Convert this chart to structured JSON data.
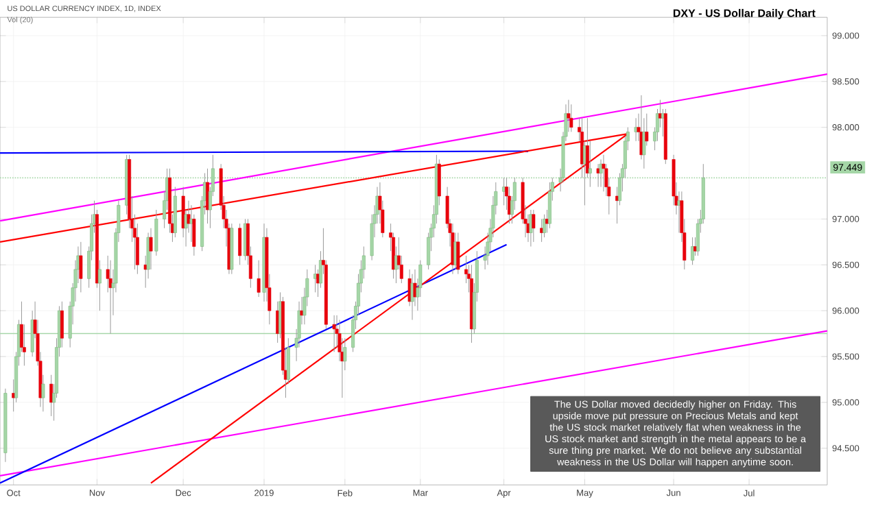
{
  "chart_data": {
    "type": "candlestick",
    "title": "DXY - US Dollar Daily Chart",
    "subtitle": "US DOLLAR CURRENCY INDEX, 1D, INDEX",
    "annotations": [
      "Vol (20)",
      "The US Dollar moved decidedly higher on Friday. This upside move put pressure on Precious Metals and kept the US stock market relatively flat when weakness in the US stock market and strength in the metal appears to be a sure thing pre market. We do not believe any substantial weakness in the US Dollar will happen anytime soon."
    ],
    "xlim": [
      "2018-09-26",
      "2019-07-30"
    ],
    "xticks": [
      {
        "value": "2018-10-01",
        "label": "Oct"
      },
      {
        "value": "2018-11-01",
        "label": "Nov"
      },
      {
        "value": "2018-12-03",
        "label": "Dec"
      },
      {
        "value": "2019-01-02",
        "label": "2019"
      },
      {
        "value": "2019-02-01",
        "label": "Feb"
      },
      {
        "value": "2019-03-01",
        "label": "Mar"
      },
      {
        "value": "2019-04-01",
        "label": "Apr"
      },
      {
        "value": "2019-05-01",
        "label": "May"
      },
      {
        "value": "2019-06-03",
        "label": "Jun"
      },
      {
        "value": "2019-07-01",
        "label": "Jul"
      }
    ],
    "ylim": [
      94.1,
      99.2
    ],
    "yticks": [
      {
        "value": 94.5,
        "label": "94.500"
      },
      {
        "value": 95,
        "label": "95.000"
      },
      {
        "value": 95.5,
        "label": "95.500"
      },
      {
        "value": 96,
        "label": "96.000"
      },
      {
        "value": 96.5,
        "label": "96.500"
      },
      {
        "value": 97,
        "label": "97.000"
      },
      {
        "value": 98,
        "label": "98.000"
      },
      {
        "value": 98.5,
        "label": "98.500"
      },
      {
        "value": 99,
        "label": "99.000"
      }
    ],
    "grid": true,
    "ref_lines": [
      {
        "axis": "y",
        "value": 95.75,
        "color": "#a5d6a7",
        "line_style": "solid"
      },
      {
        "axis": "y",
        "value": 97.449,
        "label": "97.449",
        "color": "#a5d6a7",
        "line_style": "dotted"
      }
    ],
    "series": [
      {
        "type": "line",
        "color": "#ff00ff",
        "x": [
          "2018-09-26",
          "2019-07-30"
        ],
        "values": [
          96.98,
          98.58
        ]
      },
      {
        "type": "line",
        "color": "#ff00ff",
        "x": [
          "2018-09-26",
          "2019-07-30"
        ],
        "values": [
          94.2,
          95.78
        ]
      },
      {
        "type": "line",
        "color": "#0000ff",
        "x": [
          "2018-09-26",
          "2019-04-10"
        ],
        "values": [
          97.72,
          97.74
        ]
      },
      {
        "type": "line",
        "color": "#0000ff",
        "x": [
          "2018-09-26",
          "2019-04-02"
        ],
        "values": [
          94.12,
          96.72
        ]
      },
      {
        "type": "line",
        "color": "#ff0000",
        "x": [
          "2018-09-26",
          "2019-05-17"
        ],
        "values": [
          96.75,
          97.93
        ]
      },
      {
        "type": "line",
        "color": "#ff0000",
        "x": [
          "2018-11-21",
          "2019-05-17"
        ],
        "values": [
          94.12,
          97.93
        ]
      }
    ],
    "x": [
      "2018-09-28",
      "2018-10-01",
      "2018-10-02",
      "2018-10-03",
      "2018-10-04",
      "2018-10-05",
      "2018-10-08",
      "2018-10-09",
      "2018-10-10",
      "2018-10-11",
      "2018-10-12",
      "2018-10-15",
      "2018-10-16",
      "2018-10-17",
      "2018-10-18",
      "2018-10-19",
      "2018-10-22",
      "2018-10-23",
      "2018-10-24",
      "2018-10-25",
      "2018-10-26",
      "2018-10-29",
      "2018-10-30",
      "2018-10-31",
      "2018-11-01",
      "2018-11-02",
      "2018-11-05",
      "2018-11-06",
      "2018-11-07",
      "2018-11-08",
      "2018-11-09",
      "2018-11-12",
      "2018-11-13",
      "2018-11-14",
      "2018-11-15",
      "2018-11-16",
      "2018-11-19",
      "2018-11-20",
      "2018-11-21",
      "2018-11-23",
      "2018-11-26",
      "2018-11-27",
      "2018-11-28",
      "2018-11-29",
      "2018-11-30",
      "2018-12-03",
      "2018-12-04",
      "2018-12-05",
      "2018-12-06",
      "2018-12-07",
      "2018-12-10",
      "2018-12-11",
      "2018-12-12",
      "2018-12-13",
      "2018-12-14",
      "2018-12-17",
      "2018-12-18",
      "2018-12-19",
      "2018-12-20",
      "2018-12-21",
      "2018-12-24",
      "2018-12-26",
      "2018-12-27",
      "2018-12-28",
      "2018-12-31",
      "2019-01-02",
      "2019-01-03",
      "2019-01-04",
      "2019-01-07",
      "2019-01-08",
      "2019-01-09",
      "2019-01-10",
      "2019-01-11",
      "2019-01-14",
      "2019-01-15",
      "2019-01-16",
      "2019-01-17",
      "2019-01-18",
      "2019-01-21",
      "2019-01-22",
      "2019-01-23",
      "2019-01-24",
      "2019-01-25",
      "2019-01-28",
      "2019-01-29",
      "2019-01-30",
      "2019-01-31",
      "2019-02-01",
      "2019-02-04",
      "2019-02-05",
      "2019-02-06",
      "2019-02-07",
      "2019-02-08",
      "2019-02-11",
      "2019-02-12",
      "2019-02-13",
      "2019-02-14",
      "2019-02-15",
      "2019-02-18",
      "2019-02-19",
      "2019-02-20",
      "2019-02-21",
      "2019-02-22",
      "2019-02-25",
      "2019-02-26",
      "2019-02-27",
      "2019-02-28",
      "2019-03-01",
      "2019-03-04",
      "2019-03-05",
      "2019-03-06",
      "2019-03-07",
      "2019-03-08",
      "2019-03-11",
      "2019-03-12",
      "2019-03-13",
      "2019-03-14",
      "2019-03-15",
      "2019-03-18",
      "2019-03-19",
      "2019-03-20",
      "2019-03-21",
      "2019-03-22",
      "2019-03-25",
      "2019-03-26",
      "2019-03-27",
      "2019-03-28",
      "2019-03-29",
      "2019-04-01",
      "2019-04-02",
      "2019-04-03",
      "2019-04-04",
      "2019-04-05",
      "2019-04-08",
      "2019-04-09",
      "2019-04-10",
      "2019-04-11",
      "2019-04-12",
      "2019-04-15",
      "2019-04-16",
      "2019-04-17",
      "2019-04-18",
      "2019-04-19",
      "2019-04-22",
      "2019-04-23",
      "2019-04-24",
      "2019-04-25",
      "2019-04-26",
      "2019-04-29",
      "2019-04-30",
      "2019-05-01",
      "2019-05-02",
      "2019-05-03",
      "2019-05-06",
      "2019-05-07",
      "2019-05-08",
      "2019-05-09",
      "2019-05-10",
      "2019-05-13",
      "2019-05-14",
      "2019-05-15",
      "2019-05-16",
      "2019-05-17",
      "2019-05-20",
      "2019-05-21",
      "2019-05-22",
      "2019-05-23",
      "2019-05-24",
      "2019-05-27",
      "2019-05-28",
      "2019-05-29",
      "2019-05-30",
      "2019-05-31",
      "2019-06-03",
      "2019-06-04",
      "2019-06-05",
      "2019-06-06",
      "2019-06-07",
      "2019-06-10",
      "2019-06-11",
      "2019-06-12",
      "2019-06-13",
      "2019-06-14"
    ],
    "ohlc": [
      [
        94.45,
        95.15,
        94.35,
        95.1
      ],
      [
        95.1,
        95.25,
        94.9,
        95.05
      ],
      [
        95.05,
        95.55,
        95.0,
        95.5
      ],
      [
        95.5,
        95.9,
        95.4,
        95.85
      ],
      [
        95.85,
        96.1,
        95.55,
        95.6
      ],
      [
        95.6,
        95.85,
        95.4,
        95.55
      ],
      [
        95.55,
        96.0,
        95.5,
        95.9
      ],
      [
        95.9,
        96.1,
        95.7,
        95.75
      ],
      [
        95.75,
        95.9,
        95.4,
        95.45
      ],
      [
        95.45,
        95.55,
        94.95,
        95.05
      ],
      [
        95.05,
        95.3,
        94.9,
        95.2
      ],
      [
        95.2,
        95.3,
        94.85,
        95.0
      ],
      [
        95.0,
        95.2,
        94.8,
        95.1
      ],
      [
        95.1,
        95.7,
        95.05,
        95.6
      ],
      [
        95.6,
        96.05,
        95.5,
        96.0
      ],
      [
        96.0,
        96.1,
        95.6,
        95.7
      ],
      [
        95.7,
        96.1,
        95.6,
        96.05
      ],
      [
        96.05,
        96.3,
        95.85,
        96.25
      ],
      [
        96.25,
        96.55,
        96.1,
        96.45
      ],
      [
        96.45,
        96.7,
        96.3,
        96.6
      ],
      [
        96.6,
        96.75,
        96.2,
        96.35
      ],
      [
        96.35,
        96.7,
        96.25,
        96.65
      ],
      [
        96.65,
        97.05,
        96.55,
        96.95
      ],
      [
        96.95,
        97.2,
        96.85,
        97.05
      ],
      [
        97.05,
        97.1,
        96.25,
        96.3
      ],
      [
        96.3,
        96.55,
        96.0,
        96.45
      ],
      [
        96.45,
        96.6,
        96.2,
        96.35
      ],
      [
        96.35,
        96.55,
        95.75,
        96.25
      ],
      [
        96.25,
        96.45,
        95.95,
        96.3
      ],
      [
        96.3,
        96.9,
        96.2,
        96.85
      ],
      [
        96.85,
        97.2,
        96.75,
        97.15
      ],
      [
        97.15,
        97.7,
        97.05,
        97.65
      ],
      [
        97.65,
        97.7,
        96.9,
        97.0
      ],
      [
        97.0,
        97.25,
        96.75,
        96.9
      ],
      [
        96.9,
        97.05,
        96.45,
        96.8
      ],
      [
        96.8,
        96.95,
        96.4,
        96.5
      ],
      [
        96.5,
        96.6,
        96.25,
        96.45
      ],
      [
        96.45,
        96.85,
        96.35,
        96.8
      ],
      [
        96.8,
        96.9,
        96.45,
        96.65
      ],
      [
        96.65,
        97.1,
        96.6,
        97.0
      ],
      [
        97.0,
        97.3,
        96.9,
        97.2
      ],
      [
        97.2,
        97.55,
        97.1,
        97.45
      ],
      [
        97.45,
        97.55,
        96.85,
        96.95
      ],
      [
        96.95,
        97.05,
        96.75,
        96.85
      ],
      [
        96.85,
        97.35,
        96.8,
        97.25
      ],
      [
        97.25,
        97.35,
        96.8,
        96.9
      ],
      [
        96.9,
        97.1,
        96.7,
        97.05
      ],
      [
        97.05,
        97.2,
        96.85,
        96.95
      ],
      [
        96.95,
        97.15,
        96.75,
        97.0
      ],
      [
        97.0,
        97.05,
        96.6,
        96.7
      ],
      [
        96.7,
        97.25,
        96.65,
        97.2
      ],
      [
        97.2,
        97.5,
        97.05,
        97.4
      ],
      [
        97.4,
        97.55,
        96.95,
        97.1
      ],
      [
        97.1,
        97.35,
        96.9,
        97.3
      ],
      [
        97.3,
        97.7,
        97.25,
        97.55
      ],
      [
        97.55,
        97.6,
        97.1,
        97.15
      ],
      [
        97.15,
        97.25,
        96.9,
        97.0
      ],
      [
        97.0,
        97.1,
        96.7,
        96.9
      ],
      [
        96.9,
        96.95,
        96.4,
        96.45
      ],
      [
        96.45,
        96.95,
        96.4,
        96.9
      ],
      [
        96.9,
        96.95,
        96.5,
        96.6
      ],
      [
        96.6,
        97.0,
        96.55,
        96.95
      ],
      [
        96.95,
        97.0,
        96.5,
        96.6
      ],
      [
        96.6,
        96.7,
        96.25,
        96.35
      ],
      [
        96.35,
        96.55,
        96.15,
        96.2
      ],
      [
        96.2,
        96.95,
        96.1,
        96.8
      ],
      [
        96.8,
        96.9,
        96.1,
        96.25
      ],
      [
        96.25,
        96.4,
        95.85,
        96.0
      ],
      [
        96.0,
        96.1,
        95.65,
        95.75
      ],
      [
        95.75,
        96.2,
        95.7,
        96.1
      ],
      [
        96.1,
        96.15,
        95.3,
        95.35
      ],
      [
        95.35,
        95.6,
        95.05,
        95.25
      ],
      [
        95.25,
        95.7,
        95.2,
        95.6
      ],
      [
        95.6,
        95.8,
        95.45,
        95.7
      ],
      [
        95.7,
        96.1,
        95.6,
        96.0
      ],
      [
        96.0,
        96.15,
        95.85,
        95.95
      ],
      [
        95.95,
        96.25,
        95.85,
        96.15
      ],
      [
        96.15,
        96.45,
        96.05,
        96.35
      ],
      [
        96.35,
        96.5,
        96.2,
        96.4
      ],
      [
        96.4,
        96.45,
        96.15,
        96.3
      ],
      [
        96.3,
        96.65,
        96.25,
        96.55
      ],
      [
        96.55,
        96.9,
        96.4,
        96.5
      ],
      [
        96.5,
        96.55,
        95.8,
        95.85
      ],
      [
        95.85,
        95.95,
        95.55,
        95.8
      ],
      [
        95.8,
        95.95,
        95.6,
        95.75
      ],
      [
        95.75,
        95.9,
        95.45,
        95.55
      ],
      [
        95.55,
        95.7,
        95.05,
        95.45
      ],
      [
        95.45,
        95.7,
        95.35,
        95.6
      ],
      [
        95.6,
        95.95,
        95.55,
        95.9
      ],
      [
        95.9,
        96.1,
        95.8,
        96.05
      ],
      [
        96.05,
        96.4,
        95.95,
        96.3
      ],
      [
        96.3,
        96.55,
        96.2,
        96.45
      ],
      [
        96.45,
        96.7,
        96.35,
        96.6
      ],
      [
        96.6,
        97.05,
        96.55,
        96.95
      ],
      [
        96.95,
        97.15,
        96.8,
        97.05
      ],
      [
        97.05,
        97.35,
        96.95,
        97.25
      ],
      [
        97.25,
        97.4,
        96.95,
        97.1
      ],
      [
        97.1,
        97.2,
        96.8,
        96.85
      ],
      [
        96.85,
        96.95,
        96.65,
        96.8
      ],
      [
        96.8,
        96.85,
        96.35,
        96.45
      ],
      [
        96.45,
        96.7,
        96.3,
        96.6
      ],
      [
        96.6,
        96.8,
        96.45,
        96.5
      ],
      [
        96.5,
        96.6,
        96.3,
        96.35
      ],
      [
        96.35,
        96.45,
        96.05,
        96.1
      ],
      [
        96.1,
        96.4,
        95.9,
        96.3
      ],
      [
        96.3,
        96.45,
        96.05,
        96.15
      ],
      [
        96.15,
        96.35,
        96.0,
        96.25
      ],
      [
        96.25,
        96.55,
        96.15,
        96.5
      ],
      [
        96.5,
        96.85,
        96.45,
        96.8
      ],
      [
        96.8,
        96.95,
        96.65,
        96.9
      ],
      [
        96.9,
        97.15,
        96.8,
        97.05
      ],
      [
        97.05,
        97.7,
        96.95,
        97.6
      ],
      [
        97.6,
        97.65,
        97.15,
        97.25
      ],
      [
        97.25,
        97.35,
        96.9,
        96.95
      ],
      [
        96.95,
        97.0,
        96.7,
        96.85
      ],
      [
        96.85,
        96.95,
        96.4,
        96.5
      ],
      [
        96.5,
        96.85,
        96.45,
        96.75
      ],
      [
        96.75,
        96.85,
        96.4,
        96.45
      ],
      [
        96.45,
        96.6,
        96.3,
        96.4
      ],
      [
        96.4,
        96.5,
        96.2,
        96.35
      ],
      [
        96.35,
        96.5,
        95.65,
        95.8
      ],
      [
        95.8,
        96.3,
        95.75,
        96.2
      ],
      [
        96.2,
        96.65,
        96.1,
        96.55
      ],
      [
        96.55,
        96.7,
        96.45,
        96.6
      ],
      [
        96.6,
        96.85,
        96.5,
        96.75
      ],
      [
        96.75,
        97.0,
        96.65,
        96.9
      ],
      [
        96.9,
        97.25,
        96.8,
        97.15
      ],
      [
        97.15,
        97.4,
        97.05,
        97.3
      ],
      [
        97.3,
        97.45,
        97.15,
        97.35
      ],
      [
        97.35,
        97.45,
        97.1,
        97.25
      ],
      [
        97.25,
        97.35,
        96.95,
        97.05
      ],
      [
        97.05,
        97.25,
        96.95,
        97.2
      ],
      [
        97.2,
        97.45,
        97.1,
        97.4
      ],
      [
        97.4,
        97.45,
        96.95,
        97.0
      ],
      [
        97.0,
        97.15,
        96.8,
        96.95
      ],
      [
        96.95,
        97.05,
        96.75,
        96.85
      ],
      [
        96.85,
        97.1,
        96.7,
        97.05
      ],
      [
        97.05,
        97.1,
        96.75,
        96.9
      ],
      [
        96.9,
        97.0,
        96.75,
        96.85
      ],
      [
        96.85,
        97.05,
        96.8,
        97.0
      ],
      [
        97.0,
        97.1,
        96.85,
        96.95
      ],
      [
        96.95,
        97.4,
        96.9,
        97.3
      ],
      [
        97.3,
        97.45,
        97.2,
        97.4
      ],
      [
        97.4,
        97.55,
        97.3,
        97.45
      ],
      [
        97.45,
        97.95,
        97.4,
        97.9
      ],
      [
        97.9,
        98.25,
        97.85,
        98.15
      ],
      [
        98.15,
        98.3,
        97.95,
        98.1
      ],
      [
        98.1,
        98.25,
        97.95,
        98.0
      ],
      [
        98.0,
        98.1,
        97.85,
        97.95
      ],
      [
        97.95,
        98.1,
        97.45,
        97.6
      ],
      [
        97.6,
        97.85,
        97.15,
        97.8
      ],
      [
        97.8,
        98.1,
        97.45,
        97.5
      ],
      [
        97.5,
        97.85,
        97.35,
        97.55
      ],
      [
        97.55,
        97.6,
        97.35,
        97.5
      ],
      [
        97.5,
        97.65,
        97.35,
        97.6
      ],
      [
        97.6,
        97.7,
        97.3,
        97.55
      ],
      [
        97.55,
        97.6,
        97.25,
        97.35
      ],
      [
        97.35,
        97.45,
        97.05,
        97.25
      ],
      [
        97.25,
        97.35,
        96.95,
        97.2
      ],
      [
        97.2,
        97.5,
        97.15,
        97.45
      ],
      [
        97.45,
        97.6,
        97.3,
        97.55
      ],
      [
        97.55,
        97.9,
        97.45,
        97.85
      ],
      [
        97.85,
        98.0,
        97.75,
        97.95
      ],
      [
        97.95,
        98.1,
        97.85,
        98.0
      ],
      [
        98.0,
        98.15,
        97.85,
        97.95
      ],
      [
        97.95,
        98.35,
        97.65,
        97.7
      ],
      [
        97.7,
        98.1,
        97.55,
        97.95
      ],
      [
        97.95,
        98.15,
        97.8,
        97.85
      ],
      [
        97.85,
        98.0,
        97.75,
        97.95
      ],
      [
        97.95,
        98.2,
        97.85,
        98.15
      ],
      [
        98.15,
        98.3,
        98.0,
        98.1
      ],
      [
        98.1,
        98.2,
        97.9,
        98.15
      ],
      [
        98.15,
        98.2,
        97.6,
        97.65
      ],
      [
        97.65,
        97.7,
        97.15,
        97.25
      ],
      [
        97.25,
        97.4,
        97.05,
        97.15
      ],
      [
        97.15,
        97.3,
        96.85,
        97.2
      ],
      [
        97.2,
        97.3,
        96.75,
        96.85
      ],
      [
        96.85,
        97.0,
        96.45,
        96.55
      ],
      [
        96.55,
        96.8,
        96.5,
        96.7
      ],
      [
        96.7,
        96.8,
        96.6,
        96.65
      ],
      [
        96.65,
        97.0,
        96.6,
        96.95
      ],
      [
        96.95,
        97.1,
        96.85,
        97.0
      ],
      [
        97.0,
        97.6,
        96.95,
        97.449
      ]
    ]
  }
}
